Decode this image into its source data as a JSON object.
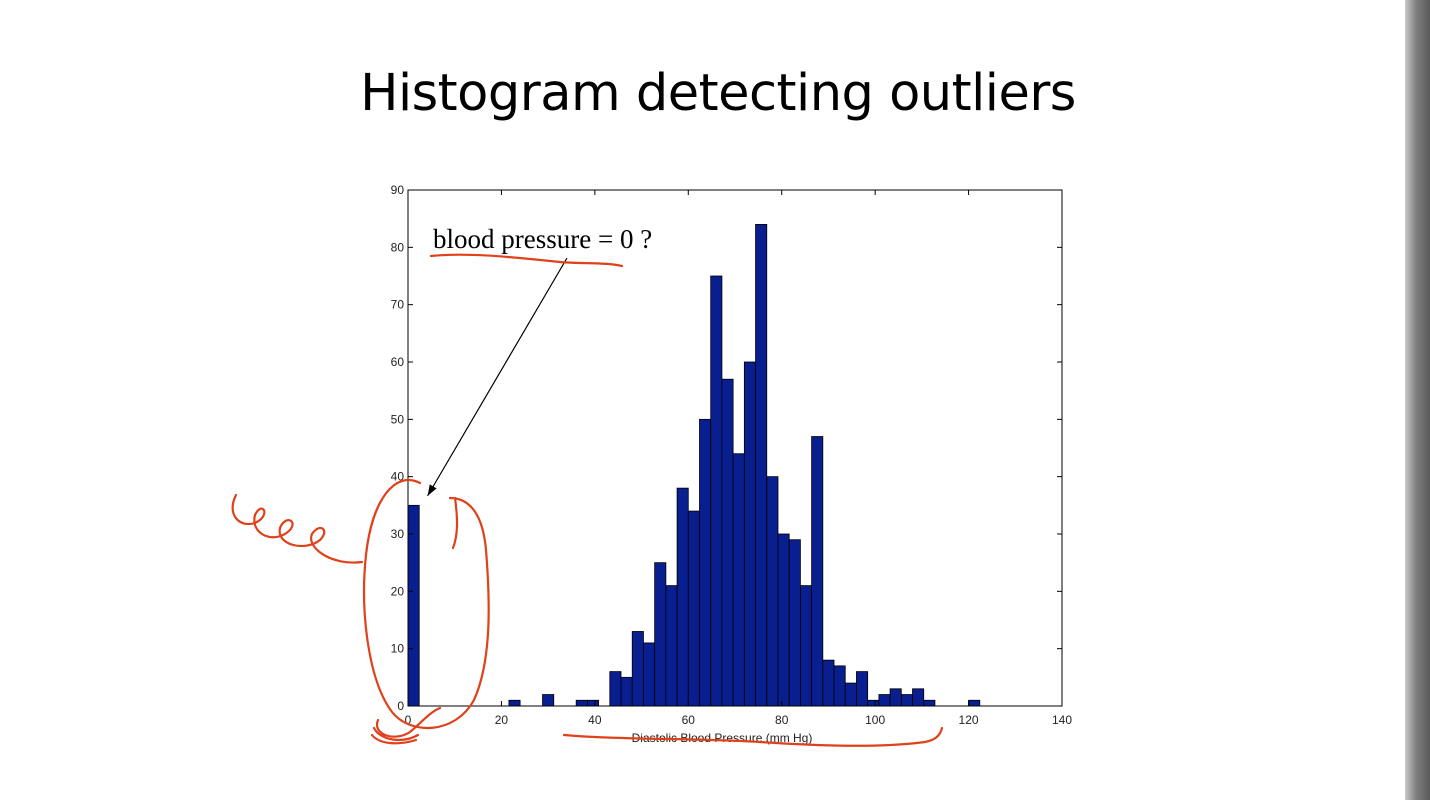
{
  "slide": {
    "title": "Histogram detecting outliers"
  },
  "chart_data": {
    "type": "bar",
    "title": "",
    "xlabel": "Diastolic Blood Pressure (mm Hg)",
    "ylabel": "",
    "xlim": [
      0,
      140
    ],
    "ylim": [
      0,
      90
    ],
    "xticks": [
      0,
      20,
      40,
      60,
      80,
      100,
      120,
      140
    ],
    "yticks": [
      0,
      10,
      20,
      30,
      40,
      50,
      60,
      70,
      80,
      90
    ],
    "bin_width": 2.4,
    "bins": [
      {
        "x": 0,
        "value": 35
      },
      {
        "x": 21.6,
        "value": 1
      },
      {
        "x": 26.4,
        "value": 0
      },
      {
        "x": 28.8,
        "value": 2
      },
      {
        "x": 36,
        "value": 1
      },
      {
        "x": 38.4,
        "value": 1
      },
      {
        "x": 43.2,
        "value": 6
      },
      {
        "x": 45.6,
        "value": 5
      },
      {
        "x": 48,
        "value": 13
      },
      {
        "x": 50.4,
        "value": 11
      },
      {
        "x": 52.8,
        "value": 25
      },
      {
        "x": 55.2,
        "value": 21
      },
      {
        "x": 57.6,
        "value": 38
      },
      {
        "x": 60,
        "value": 34
      },
      {
        "x": 62.4,
        "value": 50
      },
      {
        "x": 64.8,
        "value": 75
      },
      {
        "x": 67.2,
        "value": 57
      },
      {
        "x": 69.6,
        "value": 44
      },
      {
        "x": 72,
        "value": 60
      },
      {
        "x": 74.4,
        "value": 84
      },
      {
        "x": 76.8,
        "value": 40
      },
      {
        "x": 79.2,
        "value": 30
      },
      {
        "x": 81.6,
        "value": 29
      },
      {
        "x": 84,
        "value": 21
      },
      {
        "x": 86.4,
        "value": 47
      },
      {
        "x": 88.8,
        "value": 8
      },
      {
        "x": 91.2,
        "value": 7
      },
      {
        "x": 93.6,
        "value": 4
      },
      {
        "x": 96,
        "value": 6
      },
      {
        "x": 98.4,
        "value": 1
      },
      {
        "x": 100.8,
        "value": 2
      },
      {
        "x": 103.2,
        "value": 3
      },
      {
        "x": 105.6,
        "value": 2
      },
      {
        "x": 108,
        "value": 3
      },
      {
        "x": 110.4,
        "value": 1
      },
      {
        "x": 120,
        "value": 1
      }
    ],
    "bar_color": "#0a1f8f",
    "bar_edge_color": "#000000",
    "annotation": {
      "text": "blood pressure = 0 ?",
      "points_to": {
        "x": 1.2,
        "y": 37
      }
    }
  },
  "annotation_colors": {
    "ink": "#e0401a"
  }
}
